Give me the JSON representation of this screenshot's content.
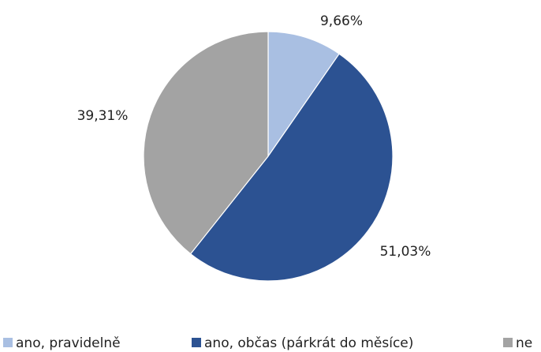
{
  "chart_data": {
    "type": "pie",
    "title": "",
    "slices": [
      {
        "label": "ano, pravidelně",
        "value": 9.66,
        "display": "9,66%",
        "color": "#a9bfe2"
      },
      {
        "label": "ano, občas (párkrát do měsíce)",
        "value": 51.03,
        "display": "51,03%",
        "color": "#2c5292"
      },
      {
        "label": "ne",
        "value": 39.31,
        "display": "39,31%",
        "color": "#a3a3a3"
      }
    ],
    "start_angle_deg": 0,
    "direction": "clockwise",
    "legend_position": "bottom"
  }
}
